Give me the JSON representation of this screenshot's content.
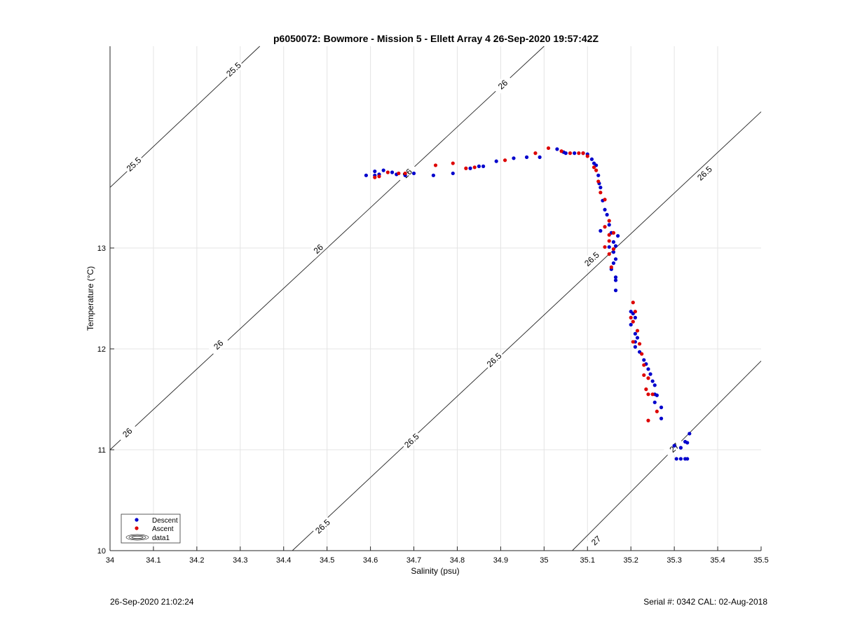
{
  "chart_data": {
    "type": "scatter",
    "title": "p6050072: Bowmore - Mission 5 - Ellett Array 4 26-Sep-2020 19:57:42Z",
    "xlabel": "Salinity (psu)",
    "ylabel": "Temperature (°C)",
    "xlim": [
      34,
      35.5
    ],
    "ylim": [
      10,
      15
    ],
    "xticks": [
      "34",
      "34.1",
      "34.2",
      "34.3",
      "34.4",
      "34.5",
      "34.6",
      "34.7",
      "34.8",
      "34.9",
      "35",
      "35.1",
      "35.2",
      "35.3",
      "35.4",
      "35.5"
    ],
    "yticks": [
      "10",
      "11",
      "12",
      "13"
    ],
    "grid": true,
    "legend_position": "bottom-left",
    "legend": [
      "Descent",
      "Ascent",
      "data1"
    ],
    "contour_levels": [
      "25.5",
      "26",
      "26.5",
      "27"
    ],
    "colors": {
      "descent": "#0000cc",
      "ascent": "#dd0000"
    },
    "series": [
      {
        "name": "Descent",
        "points": [
          [
            34.59,
            13.72
          ],
          [
            34.61,
            13.72
          ],
          [
            34.61,
            13.76
          ],
          [
            34.62,
            13.73
          ],
          [
            34.63,
            13.77
          ],
          [
            34.65,
            13.75
          ],
          [
            34.66,
            13.73
          ],
          [
            34.68,
            13.72
          ],
          [
            34.7,
            13.74
          ],
          [
            34.745,
            13.72
          ],
          [
            34.79,
            13.74
          ],
          [
            34.83,
            13.79
          ],
          [
            34.85,
            13.81
          ],
          [
            34.86,
            13.81
          ],
          [
            34.89,
            13.86
          ],
          [
            34.93,
            13.89
          ],
          [
            34.96,
            13.9
          ],
          [
            34.99,
            13.9
          ],
          [
            35.03,
            13.98
          ],
          [
            35.045,
            13.95
          ],
          [
            35.05,
            13.94
          ],
          [
            35.07,
            13.94
          ],
          [
            35.09,
            13.94
          ],
          [
            35.1,
            13.93
          ],
          [
            35.11,
            13.88
          ],
          [
            35.115,
            13.84
          ],
          [
            35.12,
            13.82
          ],
          [
            35.125,
            13.72
          ],
          [
            35.127,
            13.64
          ],
          [
            35.13,
            13.6
          ],
          [
            35.135,
            13.47
          ],
          [
            35.14,
            13.38
          ],
          [
            35.145,
            13.33
          ],
          [
            35.15,
            13.23
          ],
          [
            35.13,
            13.17
          ],
          [
            35.155,
            13.15
          ],
          [
            35.17,
            13.12
          ],
          [
            35.16,
            13.06
          ],
          [
            35.165,
            13.02
          ],
          [
            35.15,
            13.01
          ],
          [
            35.16,
            12.96
          ],
          [
            35.165,
            12.89
          ],
          [
            35.16,
            12.85
          ],
          [
            35.155,
            12.79
          ],
          [
            35.165,
            12.71
          ],
          [
            35.165,
            12.68
          ],
          [
            35.165,
            12.58
          ],
          [
            35.2,
            12.37
          ],
          [
            35.205,
            12.35
          ],
          [
            35.21,
            12.31
          ],
          [
            35.2,
            12.24
          ],
          [
            35.21,
            12.15
          ],
          [
            35.215,
            12.11
          ],
          [
            35.21,
            12.07
          ],
          [
            35.21,
            12.02
          ],
          [
            35.22,
            11.97
          ],
          [
            35.23,
            11.89
          ],
          [
            35.235,
            11.85
          ],
          [
            35.24,
            11.8
          ],
          [
            35.245,
            11.75
          ],
          [
            35.25,
            11.68
          ],
          [
            35.255,
            11.64
          ],
          [
            35.255,
            11.55
          ],
          [
            35.26,
            11.54
          ],
          [
            35.255,
            11.47
          ],
          [
            35.27,
            11.42
          ],
          [
            35.27,
            11.31
          ],
          [
            35.3,
            11.04
          ],
          [
            35.315,
            11.02
          ],
          [
            35.325,
            11.08
          ],
          [
            35.33,
            11.07
          ],
          [
            35.335,
            11.16
          ],
          [
            35.305,
            10.91
          ],
          [
            35.315,
            10.91
          ],
          [
            35.325,
            10.91
          ],
          [
            35.33,
            10.91
          ]
        ]
      },
      {
        "name": "Ascent",
        "points": [
          [
            34.61,
            13.7
          ],
          [
            34.62,
            13.71
          ],
          [
            34.64,
            13.75
          ],
          [
            34.665,
            13.74
          ],
          [
            34.68,
            13.74
          ],
          [
            34.75,
            13.82
          ],
          [
            34.79,
            13.84
          ],
          [
            34.82,
            13.79
          ],
          [
            34.84,
            13.8
          ],
          [
            34.91,
            13.87
          ],
          [
            34.98,
            13.94
          ],
          [
            35.01,
            13.99
          ],
          [
            35.04,
            13.96
          ],
          [
            35.06,
            13.94
          ],
          [
            35.08,
            13.94
          ],
          [
            35.09,
            13.94
          ],
          [
            35.1,
            13.91
          ],
          [
            35.115,
            13.8
          ],
          [
            35.12,
            13.77
          ],
          [
            35.125,
            13.66
          ],
          [
            35.13,
            13.55
          ],
          [
            35.14,
            13.48
          ],
          [
            35.15,
            13.27
          ],
          [
            35.14,
            13.21
          ],
          [
            35.15,
            13.13
          ],
          [
            35.16,
            13.15
          ],
          [
            35.15,
            13.07
          ],
          [
            35.14,
            13.01
          ],
          [
            35.16,
            12.99
          ],
          [
            35.15,
            12.94
          ],
          [
            35.155,
            12.81
          ],
          [
            35.205,
            12.46
          ],
          [
            35.21,
            12.37
          ],
          [
            35.2,
            12.31
          ],
          [
            35.205,
            12.27
          ],
          [
            35.215,
            12.18
          ],
          [
            35.22,
            12.05
          ],
          [
            35.205,
            12.07
          ],
          [
            35.225,
            11.95
          ],
          [
            35.23,
            11.84
          ],
          [
            35.23,
            11.74
          ],
          [
            35.24,
            11.71
          ],
          [
            35.235,
            11.6
          ],
          [
            35.24,
            11.55
          ],
          [
            35.25,
            11.55
          ],
          [
            35.26,
            11.38
          ],
          [
            35.24,
            11.29
          ]
        ]
      }
    ],
    "footer_left": "26-Sep-2020 21:02:24",
    "footer_right": "Serial #: 0342  CAL: 02-Aug-2018"
  }
}
